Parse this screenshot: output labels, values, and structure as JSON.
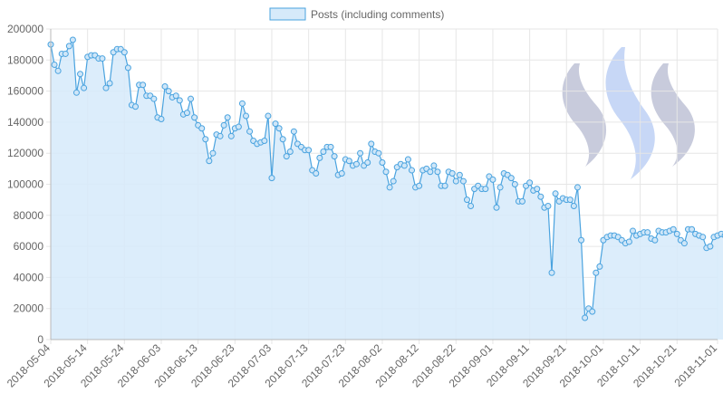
{
  "chart_data": {
    "type": "area",
    "title": "",
    "xlabel": "",
    "ylabel": "",
    "ylim": [
      0,
      200000
    ],
    "y_ticks": [
      0,
      20000,
      40000,
      60000,
      80000,
      100000,
      120000,
      140000,
      160000,
      180000,
      200000
    ],
    "x_tick_labels": [
      "2018-05-04",
      "2018-05-14",
      "2018-05-24",
      "2018-06-03",
      "2018-06-13",
      "2018-06-23",
      "2018-07-03",
      "2018-07-13",
      "2018-07-23",
      "2018-08-02",
      "2018-08-12",
      "2018-08-22",
      "2018-09-01",
      "2018-09-11",
      "2018-09-21",
      "2018-10-01",
      "2018-10-11",
      "2018-10-21",
      "2018-11-01"
    ],
    "x_range": [
      "2018-05-04",
      "2018-11-01"
    ],
    "grid": true,
    "legend_position": "top",
    "colors": {
      "line": "#4aa3df",
      "fill": "#d6eafa",
      "point_fill": "#cfe6f8",
      "grid": "#e6e6e6",
      "axis": "#b8b8b8",
      "text": "#666666"
    },
    "watermark": "steem-logo",
    "series": [
      {
        "name": "Posts (including comments)",
        "start": "2018-05-04",
        "values": [
          190000,
          177000,
          173000,
          184000,
          184000,
          189000,
          193000,
          159000,
          171000,
          162000,
          182000,
          183000,
          183000,
          181000,
          181000,
          162000,
          165000,
          185000,
          187000,
          187000,
          185000,
          175000,
          151000,
          150000,
          164000,
          164000,
          157000,
          157000,
          155000,
          143000,
          142000,
          163000,
          160000,
          156000,
          157000,
          154000,
          145000,
          146000,
          155000,
          143000,
          138000,
          136000,
          129000,
          115000,
          120000,
          132000,
          131000,
          138000,
          143000,
          131000,
          136000,
          137000,
          152000,
          144000,
          134000,
          128000,
          126000,
          127000,
          128000,
          144000,
          104000,
          139000,
          136000,
          129000,
          118000,
          121000,
          134000,
          126000,
          124000,
          122000,
          122000,
          109000,
          107000,
          117000,
          121000,
          124000,
          124000,
          118000,
          106000,
          107000,
          116000,
          115000,
          112000,
          113000,
          120000,
          112000,
          114000,
          126000,
          121000,
          120000,
          114000,
          108000,
          98000,
          102000,
          111000,
          113000,
          112000,
          116000,
          109000,
          98000,
          99000,
          109000,
          110000,
          108000,
          112000,
          108000,
          99000,
          99000,
          108000,
          107000,
          102000,
          106000,
          102000,
          90000,
          86000,
          97000,
          99000,
          97000,
          97000,
          105000,
          103000,
          85000,
          98000,
          107000,
          106000,
          104000,
          100000,
          89000,
          89000,
          99000,
          101000,
          96000,
          97000,
          92000,
          85000,
          86000,
          43000,
          94000,
          89000,
          91000,
          90000,
          90000,
          86000,
          98000,
          64000,
          14000,
          20000,
          18000,
          43000,
          47000,
          64000,
          66000,
          67000,
          67000,
          66000,
          64000,
          62000,
          63000,
          70000,
          67000,
          68000,
          69000,
          69000,
          65000,
          64000,
          70000,
          69000,
          69000,
          70000,
          71000,
          68000,
          64000,
          62000,
          71000,
          71000,
          68000,
          67000,
          66000,
          59000,
          60000,
          66000,
          67000,
          68000,
          67000
        ]
      }
    ]
  }
}
